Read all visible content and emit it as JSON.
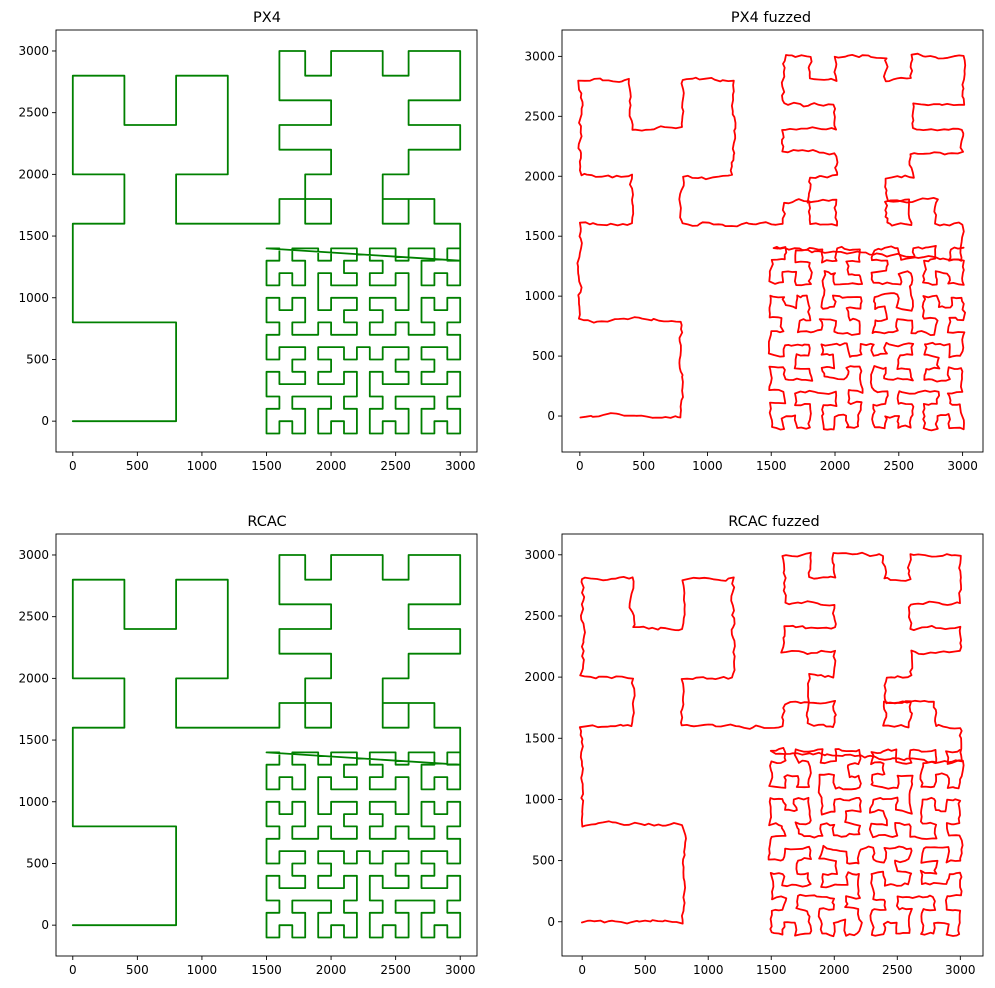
{
  "figure": {
    "background": "#ffffff"
  },
  "chart_data": [
    {
      "type": "line",
      "title": "PX4",
      "xlabel": "",
      "ylabel": "",
      "color": "#008000",
      "fuzzed": false,
      "xlim": [
        -130,
        3130
      ],
      "ylim": [
        -250,
        3170
      ],
      "xticks": [
        0,
        500,
        1000,
        1500,
        2000,
        2500,
        3000
      ],
      "yticks": [
        0,
        500,
        1000,
        1500,
        2000,
        2500,
        3000
      ],
      "tick_labels_x": [
        "0",
        "500",
        "1000",
        "1500",
        "2000",
        "2500",
        "3000"
      ],
      "tick_labels_y": [
        "0",
        "500",
        "1000",
        "1500",
        "2000",
        "2500",
        "3000"
      ],
      "series": [
        {
          "path": "hilbert-style space-filling trajectory",
          "points": "see trajectory"
        }
      ]
    },
    {
      "type": "line",
      "title": "PX4 fuzzed",
      "xlabel": "",
      "ylabel": "",
      "color": "#ff0000",
      "fuzzed": true,
      "xlim": [
        -140,
        3160
      ],
      "ylim": [
        -300,
        3220
      ],
      "xticks": [
        0,
        500,
        1000,
        1500,
        2000,
        2500,
        3000
      ],
      "yticks": [
        0,
        500,
        1000,
        1500,
        2000,
        2500,
        3000
      ],
      "tick_labels_x": [
        "0",
        "500",
        "1000",
        "1500",
        "2000",
        "2500",
        "3000"
      ],
      "tick_labels_y": [
        "0",
        "500",
        "1000",
        "1500",
        "2000",
        "2500",
        "3000"
      ],
      "series": [
        {
          "path": "noisy hilbert-style trajectory"
        }
      ]
    },
    {
      "type": "line",
      "title": "RCAC",
      "xlabel": "",
      "ylabel": "",
      "color": "#008000",
      "fuzzed": false,
      "xlim": [
        -130,
        3130
      ],
      "ylim": [
        -250,
        3170
      ],
      "xticks": [
        0,
        500,
        1000,
        1500,
        2000,
        2500,
        3000
      ],
      "yticks": [
        0,
        500,
        1000,
        1500,
        2000,
        2500,
        3000
      ],
      "tick_labels_x": [
        "0",
        "500",
        "1000",
        "1500",
        "2000",
        "2500",
        "3000"
      ],
      "tick_labels_y": [
        "0",
        "500",
        "1000",
        "1500",
        "2000",
        "2500",
        "3000"
      ],
      "series": [
        {
          "path": "hilbert-style space-filling trajectory"
        }
      ]
    },
    {
      "type": "line",
      "title": "RCAC fuzzed",
      "xlabel": "",
      "ylabel": "",
      "color": "#ff0000",
      "fuzzed": true,
      "xlim": [
        -160,
        3180
      ],
      "ylim": [
        -280,
        3170
      ],
      "xticks": [
        0,
        500,
        1000,
        1500,
        2000,
        2500,
        3000
      ],
      "yticks": [
        0,
        500,
        1000,
        1500,
        2000,
        2500,
        3000
      ],
      "tick_labels_x": [
        "0",
        "500",
        "1000",
        "1500",
        "2000",
        "2500",
        "3000"
      ],
      "tick_labels_y": [
        "0",
        "500",
        "1000",
        "1500",
        "2000",
        "2500",
        "3000"
      ],
      "series": [
        {
          "path": "noisy hilbert-style trajectory"
        }
      ]
    }
  ],
  "trajectory": [
    [
      0,
      0
    ],
    [
      800,
      0
    ],
    [
      800,
      800
    ],
    [
      0,
      800
    ],
    [
      0,
      1600
    ],
    [
      400,
      1600
    ],
    [
      400,
      2000
    ],
    [
      0,
      2000
    ],
    [
      0,
      2800
    ],
    [
      400,
      2800
    ],
    [
      400,
      2400
    ],
    [
      800,
      2400
    ],
    [
      800,
      2800
    ],
    [
      1200,
      2800
    ],
    [
      1200,
      2000
    ],
    [
      800,
      2000
    ],
    [
      800,
      1600
    ],
    [
      1600,
      1600
    ],
    [
      1600,
      1800
    ],
    [
      1800,
      1800
    ],
    [
      1800,
      1600
    ],
    [
      2000,
      1600
    ],
    [
      2000,
      1800
    ],
    [
      1800,
      1800
    ],
    [
      1800,
      2000
    ],
    [
      2000,
      2000
    ],
    [
      2000,
      2200
    ],
    [
      1600,
      2200
    ],
    [
      1600,
      2400
    ],
    [
      2000,
      2400
    ],
    [
      2000,
      2600
    ],
    [
      1600,
      2600
    ],
    [
      1600,
      3000
    ],
    [
      1800,
      3000
    ],
    [
      1800,
      2800
    ],
    [
      2000,
      2800
    ],
    [
      2000,
      3000
    ],
    [
      2400,
      3000
    ],
    [
      2400,
      2800
    ],
    [
      2600,
      2800
    ],
    [
      2600,
      3000
    ],
    [
      3000,
      3000
    ],
    [
      3000,
      2600
    ],
    [
      2600,
      2600
    ],
    [
      2600,
      2400
    ],
    [
      3000,
      2400
    ],
    [
      3000,
      2200
    ],
    [
      2600,
      2200
    ],
    [
      2600,
      2000
    ],
    [
      2400,
      2000
    ],
    [
      2400,
      1800
    ],
    [
      2600,
      1800
    ],
    [
      2600,
      1600
    ],
    [
      2400,
      1600
    ],
    [
      2400,
      1800
    ],
    [
      2800,
      1800
    ],
    [
      2800,
      1600
    ],
    [
      3000,
      1600
    ],
    [
      3000,
      1300
    ]
  ],
  "hilbert_block": {
    "x_range": [
      1500,
      3000
    ],
    "y_range": [
      -100,
      1400
    ],
    "order": 4
  }
}
